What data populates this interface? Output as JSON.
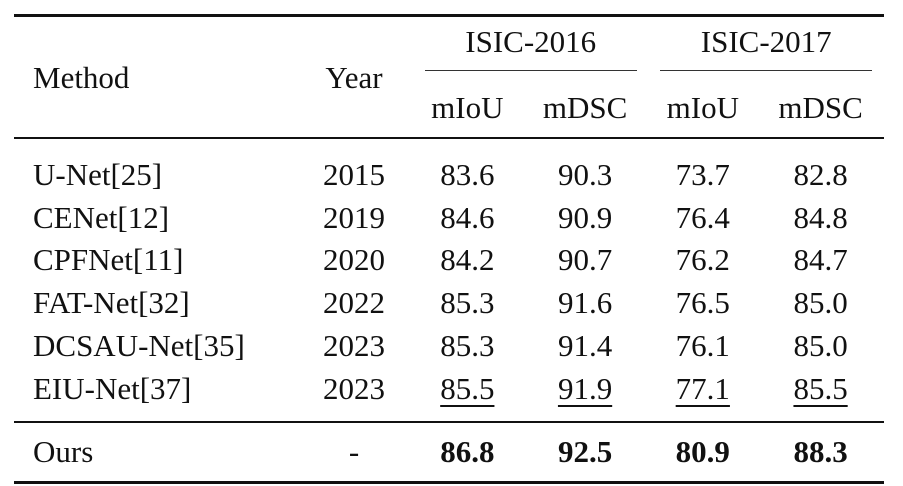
{
  "table": {
    "header": {
      "method": "Method",
      "year": "Year",
      "groups": [
        {
          "label": "ISIC-2016",
          "columns": [
            "mIoU",
            "mDSC"
          ]
        },
        {
          "label": "ISIC-2017",
          "columns": [
            "mIoU",
            "mDSC"
          ]
        }
      ]
    },
    "rows": [
      {
        "method": "U-Net[25]",
        "year": "2015",
        "values": [
          "83.6",
          "90.3",
          "73.7",
          "82.8"
        ]
      },
      {
        "method": "CENet[12]",
        "year": "2019",
        "values": [
          "84.6",
          "90.9",
          "76.4",
          "84.8"
        ]
      },
      {
        "method": "CPFNet[11]",
        "year": "2020",
        "values": [
          "84.2",
          "90.7",
          "76.2",
          "84.7"
        ]
      },
      {
        "method": "FAT-Net[32]",
        "year": "2022",
        "values": [
          "85.3",
          "91.6",
          "76.5",
          "85.0"
        ]
      },
      {
        "method": "DCSAU-Net[35]",
        "year": "2023",
        "values": [
          "85.3",
          "91.4",
          "76.1",
          "85.0"
        ]
      },
      {
        "method": "EIU-Net[37]",
        "year": "2023",
        "values": [
          "85.5",
          "91.9",
          "77.1",
          "85.5"
        ]
      }
    ],
    "ours": {
      "method": "Ours",
      "year": "-",
      "values": [
        "86.8",
        "92.5",
        "80.9",
        "88.3"
      ]
    }
  }
}
